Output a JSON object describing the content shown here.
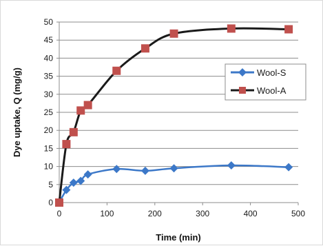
{
  "chart_data": {
    "type": "line",
    "xlabel": "Time (min)",
    "ylabel": "Dye uptake, Q (mg/g)",
    "xlim": [
      0,
      500
    ],
    "ylim": [
      0,
      50
    ],
    "xticks": [
      "0",
      "100",
      "200",
      "300",
      "400",
      "500"
    ],
    "yticks": [
      "0",
      "5",
      "10",
      "15",
      "20",
      "25",
      "30",
      "35",
      "40",
      "45",
      "50"
    ],
    "grid": "horizontal",
    "legend_position": "right",
    "series": [
      {
        "name": "Wool-S",
        "color": "#3c78c8",
        "marker": "diamond",
        "x": [
          0,
          15,
          30,
          45,
          60,
          120,
          180,
          240,
          360,
          480
        ],
        "y": [
          0,
          3.5,
          5.5,
          6.0,
          7.8,
          9.3,
          8.8,
          9.5,
          10.3,
          9.8
        ]
      },
      {
        "name": "Wool-A",
        "color": "#c0504d",
        "marker": "square",
        "x": [
          0,
          15,
          30,
          45,
          60,
          120,
          180,
          240,
          360,
          480
        ],
        "y": [
          0,
          16.2,
          19.5,
          25.5,
          27.0,
          36.5,
          42.7,
          46.8,
          48.2,
          48.0
        ]
      }
    ]
  }
}
